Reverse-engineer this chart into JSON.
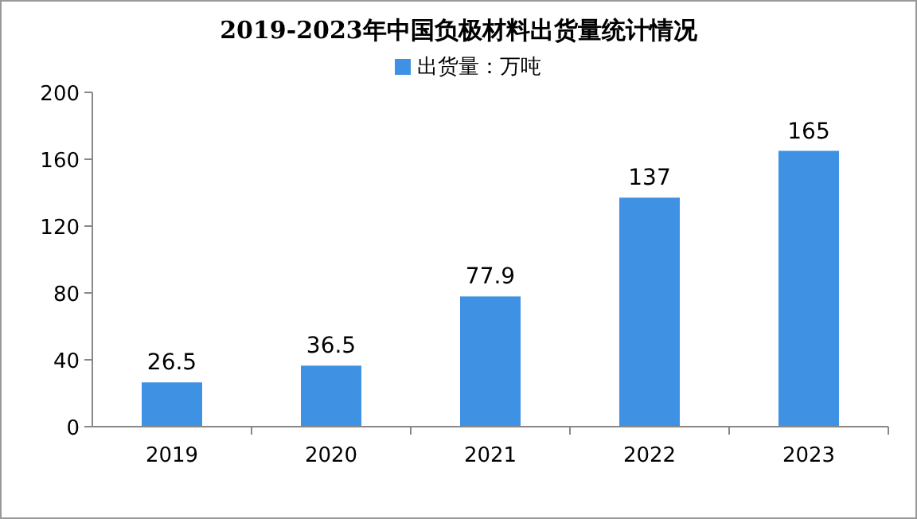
{
  "chart_data": {
    "type": "bar",
    "title": "2019-2023年中国负极材料出货量统计情况",
    "categories": [
      "2019",
      "2020",
      "2021",
      "2022",
      "2023"
    ],
    "series": [
      {
        "name": "出货量：万吨",
        "color": "#3f91e3",
        "values": [
          26.5,
          36.5,
          77.9,
          137,
          165
        ]
      }
    ],
    "ylim": [
      0,
      200
    ],
    "yticks": [
      0,
      40,
      80,
      120,
      160,
      200
    ],
    "grid": false,
    "legend": "top",
    "data_labels": true
  }
}
